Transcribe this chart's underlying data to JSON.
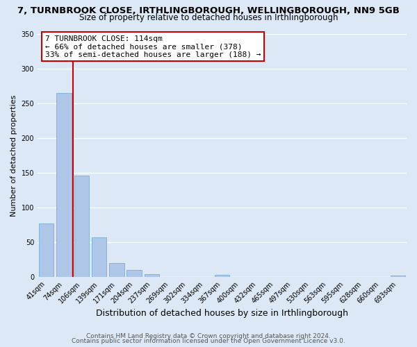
{
  "title": "7, TURNBROOK CLOSE, IRTHLINGBOROUGH, WELLINGBOROUGH, NN9 5GB",
  "subtitle": "Size of property relative to detached houses in Irthlingborough",
  "xlabel": "Distribution of detached houses by size in Irthlingborough",
  "ylabel": "Number of detached properties",
  "bar_labels": [
    "41sqm",
    "74sqm",
    "106sqm",
    "139sqm",
    "171sqm",
    "204sqm",
    "237sqm",
    "269sqm",
    "302sqm",
    "334sqm",
    "367sqm",
    "400sqm",
    "432sqm",
    "465sqm",
    "497sqm",
    "530sqm",
    "563sqm",
    "595sqm",
    "628sqm",
    "660sqm",
    "693sqm"
  ],
  "bar_values": [
    77,
    265,
    146,
    57,
    20,
    10,
    4,
    0,
    0,
    0,
    3,
    0,
    0,
    0,
    0,
    0,
    0,
    0,
    0,
    0,
    2
  ],
  "bar_color": "#aec6e8",
  "bar_edge_color": "#7aadd4",
  "background_color": "#dce8f5",
  "grid_color": "#ffffff",
  "ylim": [
    0,
    350
  ],
  "yticks": [
    0,
    50,
    100,
    150,
    200,
    250,
    300,
    350
  ],
  "vline_x": 1.5,
  "vline_color": "#cc0000",
  "annotation_title": "7 TURNBROOK CLOSE: 114sqm",
  "annotation_line2": "← 66% of detached houses are smaller (378)",
  "annotation_line3": "33% of semi-detached houses are larger (188) →",
  "annotation_box_color": "#cc0000",
  "footer1": "Contains HM Land Registry data © Crown copyright and database right 2024.",
  "footer2": "Contains public sector information licensed under the Open Government Licence v3.0.",
  "title_fontsize": 9.5,
  "subtitle_fontsize": 8.5,
  "xlabel_fontsize": 9,
  "ylabel_fontsize": 8,
  "tick_fontsize": 7,
  "annotation_fontsize": 8,
  "footer_fontsize": 6.5
}
